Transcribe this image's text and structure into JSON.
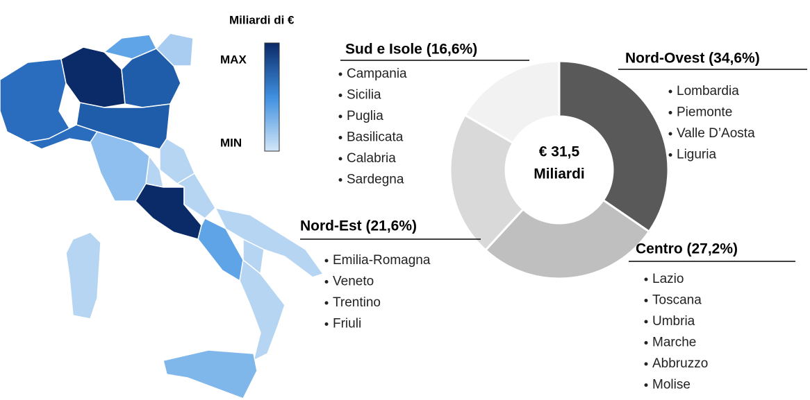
{
  "chart_data": {
    "type": "donut",
    "categories": [
      "Nord-Ovest (34,6%)",
      "Centro (27,2%)",
      "Nord-Est (21,6%)",
      "Sud e Isole (16,6%)"
    ],
    "values": [
      34.6,
      27.2,
      21.6,
      16.6
    ],
    "colors": [
      "#595959",
      "#bfbfbf",
      "#d9d9d9",
      "#f2f2f2"
    ],
    "regions": [
      [
        "Lombardia",
        "Piemonte",
        "Valle D’Aosta",
        "Liguria"
      ],
      [
        "Lazio",
        "Toscana",
        "Umbria",
        "Marche",
        "Abbruzzo",
        "Molise"
      ],
      [
        "Emilia-Romagna",
        "Veneto",
        "Trentino",
        "Friuli"
      ],
      [
        "Campania",
        "Sicilia",
        "Puglia",
        "Basilicata",
        "Calabria",
        "Sardegna"
      ]
    ],
    "center_label": [
      "€ 31,5",
      "Miliardi"
    ],
    "map_legend": {
      "title": "Miliardi di €",
      "max": "MAX",
      "min": "MIN"
    }
  }
}
